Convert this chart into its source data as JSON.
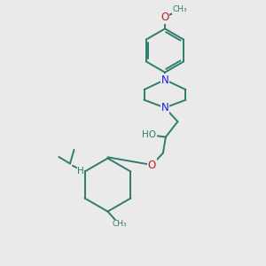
{
  "bg_color": "#EAEAEA",
  "bond_color": "#2E7D6E",
  "bond_width": 1.4,
  "N_color": "#1B1BE8",
  "O_color": "#CC1A1A",
  "fig_width": 3.0,
  "fig_height": 3.0,
  "dpi": 100,
  "xlim": [
    0,
    10
  ],
  "ylim": [
    0,
    10
  ]
}
